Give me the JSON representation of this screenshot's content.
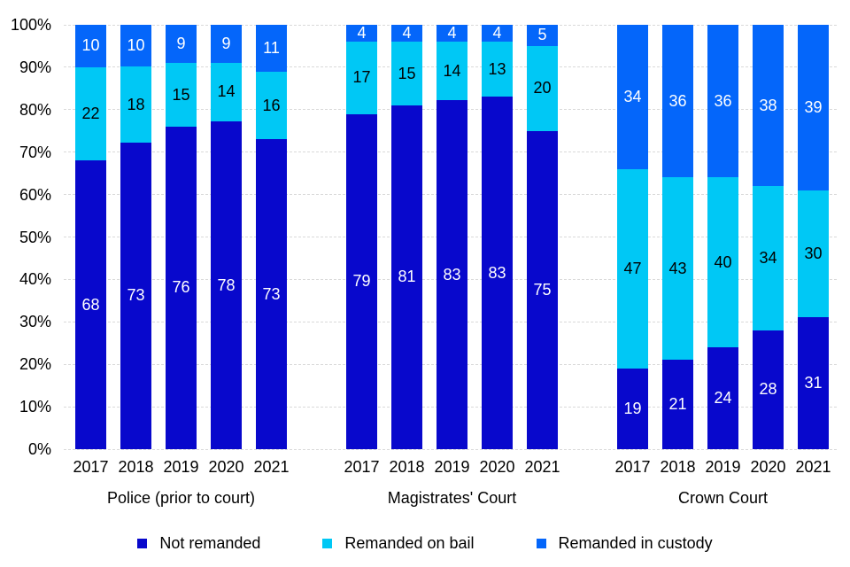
{
  "chart_data": {
    "type": "bar",
    "subtype": "stacked-100-percent",
    "title": "",
    "xlabel": "",
    "ylabel": "",
    "ylim": [
      0,
      100
    ],
    "grid": "horizontal-dashed",
    "grid_color": "#d9d9d9",
    "legend_position": "bottom",
    "y_ticks": [
      "100%",
      "90%",
      "80%",
      "70%",
      "60%",
      "50%",
      "40%",
      "30%",
      "20%",
      "10%",
      "0%"
    ],
    "years": [
      "2017",
      "2018",
      "2019",
      "2020",
      "2021"
    ],
    "groups": [
      "Police (prior to court)",
      "Magistrates' Court",
      "Crown Court"
    ],
    "series": [
      {
        "name": "Not remanded",
        "color": "#0808cc",
        "text_color": "#ffffff",
        "values": [
          [
            68,
            73,
            76,
            78,
            73
          ],
          [
            79,
            81,
            83,
            83,
            75
          ],
          [
            19,
            21,
            24,
            28,
            31
          ]
        ]
      },
      {
        "name": "Remanded on bail",
        "color": "#00c8f5",
        "text_color": "#000000",
        "values": [
          [
            22,
            18,
            15,
            14,
            16
          ],
          [
            17,
            15,
            14,
            13,
            20
          ],
          [
            47,
            43,
            40,
            34,
            30
          ]
        ]
      },
      {
        "name": "Remanded in custody",
        "color": "#0466fa",
        "text_color": "#ffffff",
        "values": [
          [
            10,
            10,
            9,
            9,
            11
          ],
          [
            4,
            4,
            4,
            4,
            5
          ],
          [
            34,
            36,
            36,
            38,
            39
          ]
        ]
      }
    ]
  }
}
